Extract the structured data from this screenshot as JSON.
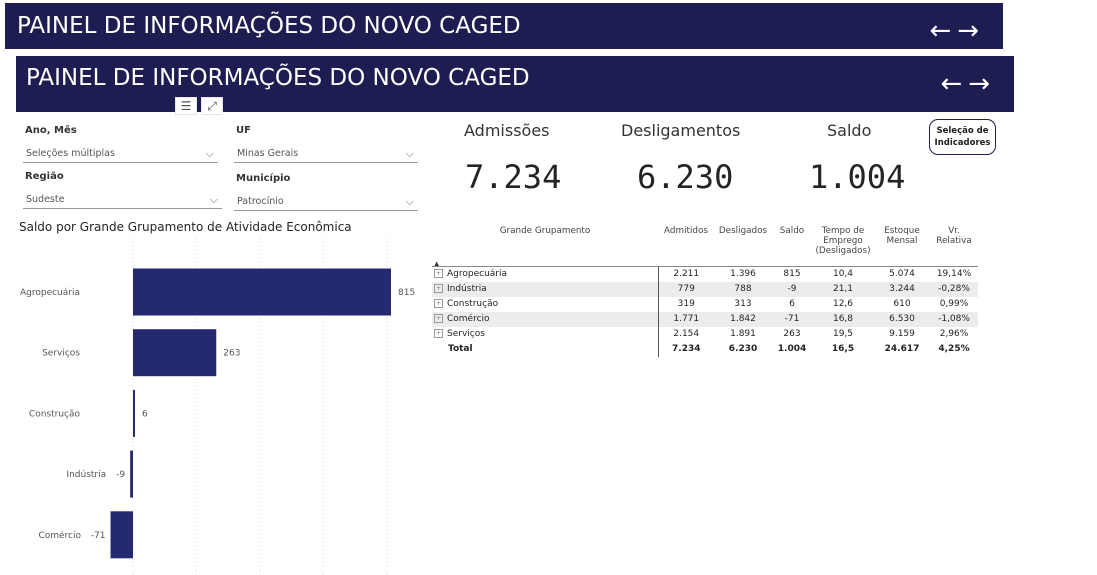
{
  "banners": [
    {
      "title": "PAINEL DE INFORMAÇÕES DO NOVO CAGED",
      "back_icon": "arrow-left-icon",
      "forward_icon": "arrow-right-icon"
    },
    {
      "title": "PAINEL DE INFORMAÇÕES DO NOVO CAGED",
      "back_icon": "arrow-left-icon",
      "forward_icon": "arrow-right-icon"
    }
  ],
  "arrows": {
    "left": "←",
    "right": "→"
  },
  "visual_header": {
    "filter_icon": "☰",
    "focus_icon": "⤢"
  },
  "slicers": {
    "ano_mes": {
      "label": "Ano, Mês",
      "value": "Seleções múltiplas"
    },
    "uf": {
      "label": "UF",
      "value": "Minas Gerais"
    },
    "regiao": {
      "label": "Região",
      "value": "Sudeste"
    },
    "municipio": {
      "label": "Município",
      "value": "Patrocínio"
    },
    "chevron": "⌵"
  },
  "kpis": {
    "admissoes": {
      "label": "Admissões",
      "value": "7.234"
    },
    "desligamentos": {
      "label": "Desligamentos",
      "value": "6.230"
    },
    "saldo": {
      "label": "Saldo",
      "value": "1.004"
    }
  },
  "indicator_button": {
    "line1": "Seleção de",
    "line2": "Indicadores"
  },
  "chart_data": {
    "type": "bar",
    "orientation": "horizontal",
    "title": "Saldo por Grande Grupamento de Atividade Econômica",
    "categories": [
      "Agropecuária",
      "Serviços",
      "Construção",
      "Indústria",
      "Comércio"
    ],
    "values": [
      815,
      263,
      6,
      -9,
      -71
    ],
    "color": "#252a70",
    "grid": true
  },
  "matrix": {
    "sort_icon": "▲",
    "headers": {
      "grupo": "Grande Grupamento",
      "admitidos": "Admitidos",
      "desligados": "Desligados",
      "saldo": "Saldo",
      "tempo": "Tempo de Emprego (Desligados)",
      "estoque": "Estoque Mensal",
      "vr": "Vr. Relativa"
    },
    "expand_icon": "+",
    "rows": [
      {
        "grupo": "Agropecuária",
        "admitidos": "2.211",
        "desligados": "1.396",
        "saldo": "815",
        "tempo": "10,4",
        "estoque": "5.074",
        "vr": "19,14%"
      },
      {
        "grupo": "Indústria",
        "admitidos": "779",
        "desligados": "788",
        "saldo": "-9",
        "tempo": "21,1",
        "estoque": "3.244",
        "vr": "-0,28%"
      },
      {
        "grupo": "Construção",
        "admitidos": "319",
        "desligados": "313",
        "saldo": "6",
        "tempo": "12,6",
        "estoque": "610",
        "vr": "0,99%"
      },
      {
        "grupo": "Comércio",
        "admitidos": "1.771",
        "desligados": "1.842",
        "saldo": "-71",
        "tempo": "16,8",
        "estoque": "6.530",
        "vr": "-1,08%"
      },
      {
        "grupo": "Serviços",
        "admitidos": "2.154",
        "desligados": "1.891",
        "saldo": "263",
        "tempo": "19,5",
        "estoque": "9.159",
        "vr": "2,96%"
      }
    ],
    "total": {
      "grupo": "Total",
      "admitidos": "7.234",
      "desligados": "6.230",
      "saldo": "1.004",
      "tempo": "16,5",
      "estoque": "24.617",
      "vr": "4,25%"
    }
  }
}
